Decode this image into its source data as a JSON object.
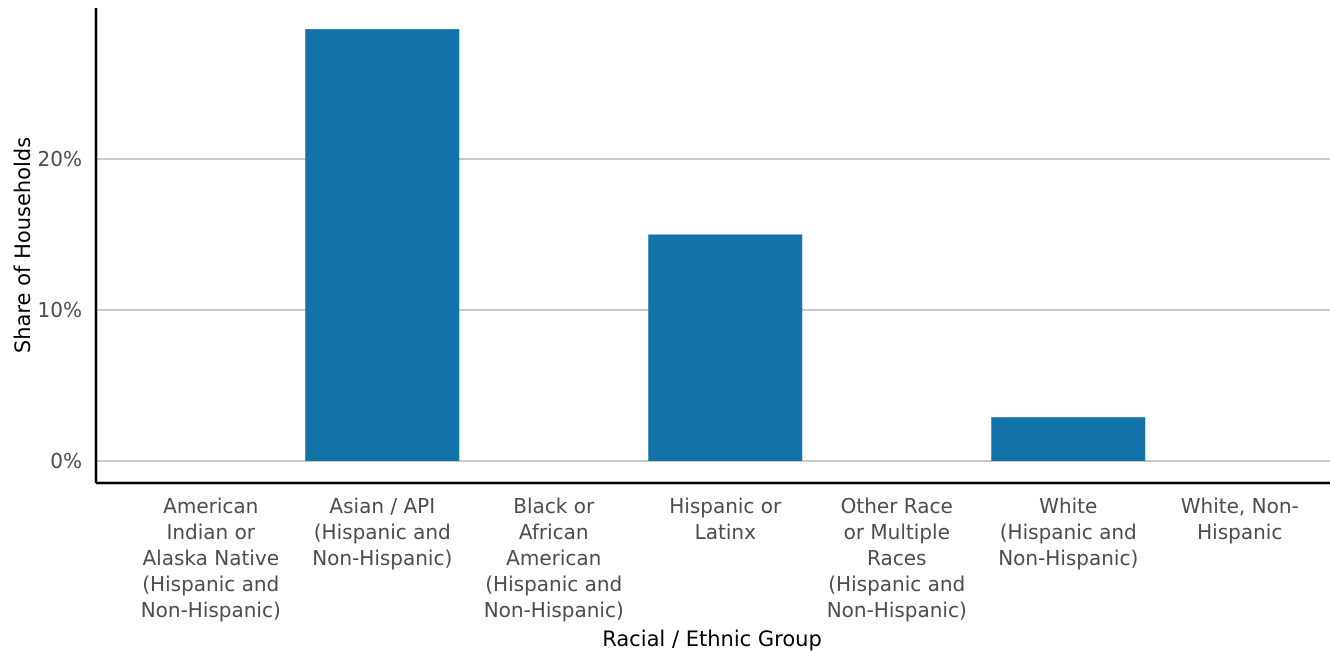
{
  "chart_data": {
    "type": "bar",
    "categories": [
      [
        "American",
        "Indian or",
        "Alaska Native",
        "(Hispanic and",
        "Non-Hispanic)"
      ],
      [
        "Asian / API",
        "(Hispanic and",
        "Non-Hispanic)"
      ],
      [
        "Black or",
        "African",
        "American",
        "(Hispanic and",
        "Non-Hispanic)"
      ],
      [
        "Hispanic or",
        "Latinx"
      ],
      [
        "Other Race",
        "or Multiple",
        "Races",
        "(Hispanic and",
        "Non-Hispanic)"
      ],
      [
        "White",
        "(Hispanic and",
        "Non-Hispanic)"
      ],
      [
        "White, Non-",
        "Hispanic"
      ]
    ],
    "values": [
      0,
      28.6,
      0,
      15.0,
      0,
      2.9,
      0
    ],
    "xlabel": "Racial / Ethnic Group",
    "ylabel": "Share of Households",
    "ylim": [
      0,
      30
    ],
    "yticks": [
      0,
      10,
      20
    ],
    "ytick_labels": [
      "0%",
      "10%",
      "20%"
    ],
    "grid": true,
    "colors": {
      "bar": "#1273a8",
      "grid": "#a6a6a6",
      "axis": "#000000"
    }
  }
}
